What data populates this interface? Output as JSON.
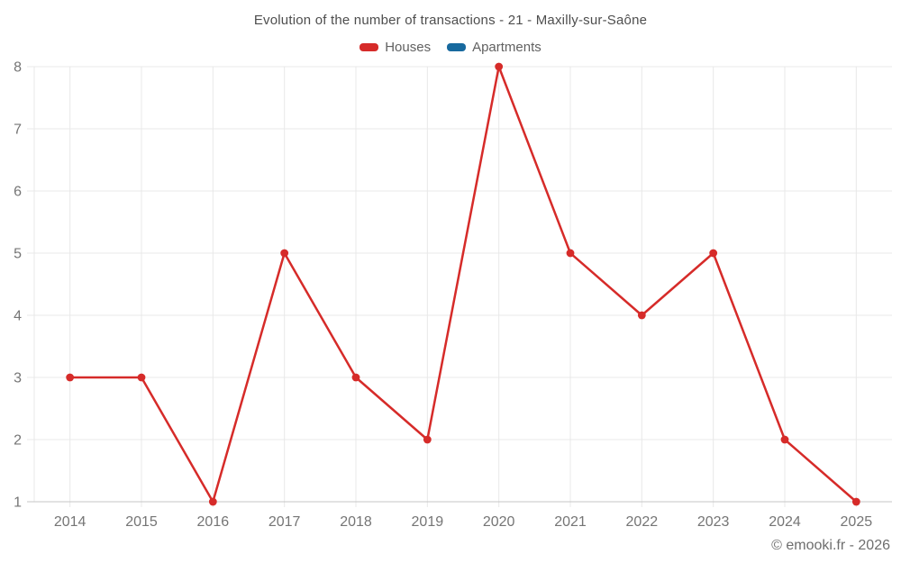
{
  "chart_data": {
    "type": "line",
    "title": "Evolution of the number of transactions - 21 - Maxilly-sur-Saône",
    "xlabel": "",
    "ylabel": "",
    "categories": [
      "2014",
      "2015",
      "2016",
      "2017",
      "2018",
      "2019",
      "2020",
      "2021",
      "2022",
      "2023",
      "2024",
      "2025"
    ],
    "series": [
      {
        "name": "Houses",
        "color": "#d62b29",
        "values": [
          3,
          3,
          1,
          5,
          3,
          2,
          8,
          5,
          4,
          5,
          2,
          1
        ]
      },
      {
        "name": "Apartments",
        "color": "#17699e",
        "values": []
      }
    ],
    "ylim": [
      1,
      8
    ],
    "yticks": [
      1,
      2,
      3,
      4,
      5,
      6,
      7,
      8
    ],
    "grid": true,
    "legend_position": "top"
  },
  "footer": {
    "credit": "© emooki.fr - 2026"
  },
  "colors": {
    "background": "#ffffff",
    "gridline": "#e8e8e8",
    "axis_line": "#c6c6c6",
    "tick_label": "#757575",
    "title_text": "#4e4e4e",
    "legend_text": "#616161",
    "houses_series": "#d62b29",
    "apartments_series": "#17699e"
  }
}
